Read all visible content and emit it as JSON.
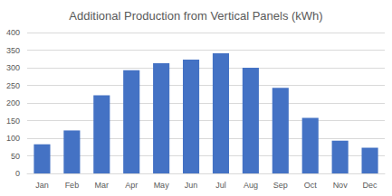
{
  "chart_data": {
    "type": "bar",
    "title": "Additional Production from Vertical Panels (kWh)",
    "categories": [
      "Jan",
      "Feb",
      "Mar",
      "Apr",
      "May",
      "Jun",
      "Jul",
      "Aug",
      "Sep",
      "Oct",
      "Nov",
      "Dec"
    ],
    "values": [
      83,
      122,
      222,
      293,
      313,
      323,
      341,
      300,
      243,
      158,
      93,
      73
    ],
    "color": "#4472c4",
    "ylim": [
      0,
      400
    ],
    "yticks": [
      0,
      50,
      100,
      150,
      200,
      250,
      300,
      350,
      400
    ],
    "grid": true
  }
}
